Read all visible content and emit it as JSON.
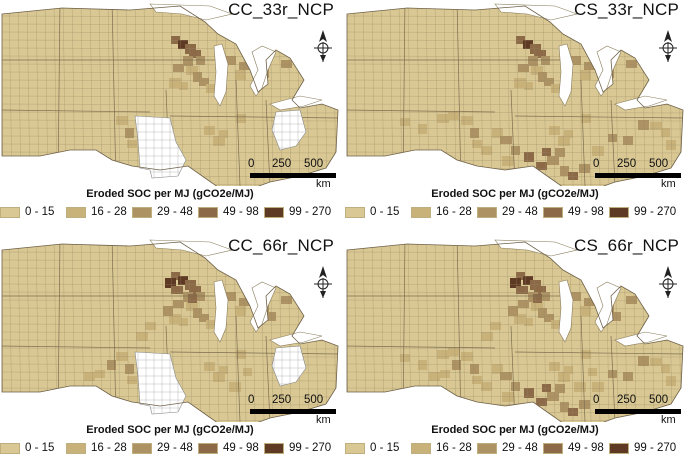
{
  "legend": {
    "title": "Eroded SOC per MJ (gCO2e/MJ)",
    "classes": [
      {
        "label": "0 - 15",
        "color": "#d9c893"
      },
      {
        "label": "16 - 28",
        "color": "#c8b27a"
      },
      {
        "label": "29 - 48",
        "color": "#ad9263"
      },
      {
        "label": "49 - 98",
        "color": "#8c6a48"
      },
      {
        "label": "99 - 270",
        "color": "#5e3a24"
      }
    ]
  },
  "scale_bar": {
    "ticks": [
      "0",
      "250",
      "500"
    ],
    "unit": "km"
  },
  "panels": [
    {
      "title": "CC_33r_NCP",
      "missing_states": true
    },
    {
      "title": "CS_33r_NCP",
      "missing_states": false
    },
    {
      "title": "CC_66r_NCP",
      "missing_states": true
    },
    {
      "title": "CS_66r_NCP",
      "missing_states": false
    }
  ]
}
